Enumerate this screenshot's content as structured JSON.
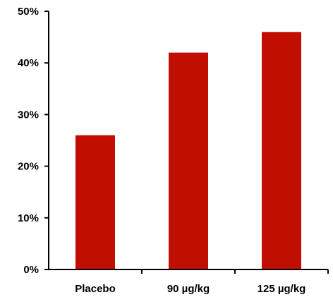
{
  "chart_data": {
    "type": "bar",
    "categories": [
      "Placebo",
      "90 µg/kg",
      "125 µg/kg"
    ],
    "values": [
      26,
      42,
      46
    ],
    "ylim": [
      0,
      50
    ],
    "yticks": [
      0,
      10,
      20,
      30,
      40,
      50
    ],
    "ytick_labels": [
      "0%",
      "10%",
      "20%",
      "30%",
      "40%",
      "50%"
    ],
    "bar_color": "#C00F00",
    "axis_color": "#000000",
    "grid": false,
    "legend": false
  }
}
